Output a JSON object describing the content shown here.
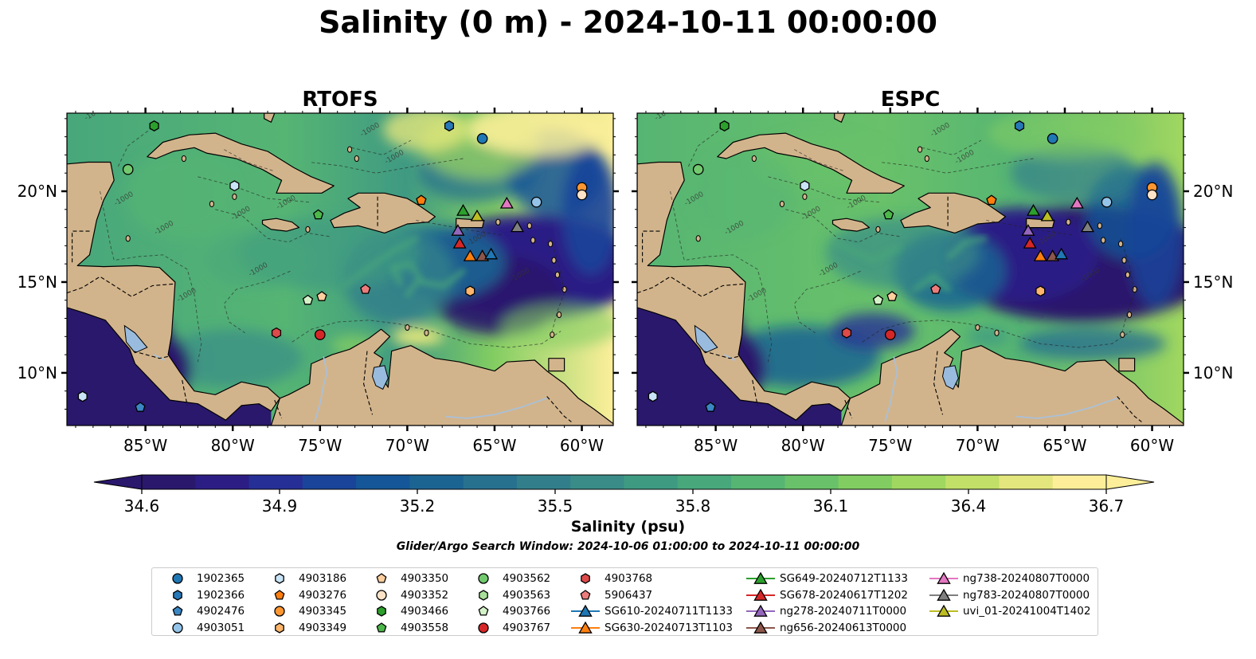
{
  "title": "Salinity (0 m) - 2024-10-11 00:00:00",
  "panels": [
    {
      "title": "RTOFS",
      "model": "rtofs"
    },
    {
      "title": "ESPC",
      "model": "espc"
    }
  ],
  "map_extent": {
    "lon_min": -89.5,
    "lon_max": -58.2,
    "lat_min": 7.1,
    "lat_max": 24.3
  },
  "lon_ticks": [
    {
      "value": -85,
      "label": "85°W"
    },
    {
      "value": -80,
      "label": "80°W"
    },
    {
      "value": -75,
      "label": "75°W"
    },
    {
      "value": -70,
      "label": "70°W"
    },
    {
      "value": -65,
      "label": "65°W"
    },
    {
      "value": -60,
      "label": "60°W"
    }
  ],
  "lat_ticks": [
    {
      "value": 10,
      "label": "10°N"
    },
    {
      "value": 15,
      "label": "15°N"
    },
    {
      "value": 20,
      "label": "20°N"
    }
  ],
  "colorbar": {
    "label": "Salinity (psu)",
    "min": 34.6,
    "max": 36.7,
    "ticks": [
      "34.6",
      "34.9",
      "35.2",
      "35.5",
      "35.8",
      "36.1",
      "36.4",
      "36.7"
    ],
    "extend": "both",
    "colormap": "haline",
    "colors": [
      "#2a186c",
      "#2c1d85",
      "#262f96",
      "#1a449a",
      "#145697",
      "#1b6492",
      "#27718f",
      "#327f8b",
      "#398c87",
      "#3f9a82",
      "#48a77b",
      "#56b573",
      "#69c16a",
      "#82cd62",
      "#a0d760",
      "#c2df68",
      "#e3e67c",
      "#fdef9a"
    ]
  },
  "contour_label": "-1000",
  "search_window": "Glider/Argo Search Window: 2024-10-06 01:00:00 to 2024-10-11 00:00:00",
  "colors": {
    "land": "#d2b48c",
    "lakes": "#99bbdd",
    "rivers": "#a7c1dd"
  },
  "legend": [
    {
      "label": "1902365",
      "marker": "circle",
      "color": "#1f77b4"
    },
    {
      "label": "1902366",
      "marker": "hexagon",
      "color": "#2678b8"
    },
    {
      "label": "4902476",
      "marker": "pentagon",
      "color": "#3a87c4"
    },
    {
      "label": "4903051",
      "marker": "circle",
      "color": "#94c4e9"
    },
    {
      "label": "4903186",
      "marker": "hexagon",
      "color": "#c8e4f6"
    },
    {
      "label": "4903276",
      "marker": "pentagon",
      "color": "#ff7f0e"
    },
    {
      "label": "4903345",
      "marker": "circle",
      "color": "#ff9632"
    },
    {
      "label": "4903349",
      "marker": "hexagon",
      "color": "#ffb56b"
    },
    {
      "label": "4903350",
      "marker": "pentagon",
      "color": "#ffcf9e"
    },
    {
      "label": "4903352",
      "marker": "circle",
      "color": "#ffe3c8"
    },
    {
      "label": "4903466",
      "marker": "hexagon",
      "color": "#2ca02c"
    },
    {
      "label": "4903558",
      "marker": "pentagon",
      "color": "#4cb84a"
    },
    {
      "label": "4903562",
      "marker": "circle",
      "color": "#72c96e"
    },
    {
      "label": "4903563",
      "marker": "hexagon",
      "color": "#a8e09a"
    },
    {
      "label": "4903766",
      "marker": "pentagon",
      "color": "#d4f2c8"
    },
    {
      "label": "4903767",
      "marker": "circle",
      "color": "#d62728"
    },
    {
      "label": "4903768",
      "marker": "hexagon",
      "color": "#de4a4a"
    },
    {
      "label": "5906437",
      "marker": "pentagon",
      "color": "#ec7c7c"
    },
    {
      "label": "SG610-20240711T1133",
      "marker": "triangle-line",
      "color": "#1f77b4"
    },
    {
      "label": "SG630-20240713T1103",
      "marker": "triangle-line",
      "color": "#ff7f0e"
    },
    {
      "label": "SG649-20240712T1133",
      "marker": "triangle-line",
      "color": "#2ca02c"
    },
    {
      "label": "SG678-20240617T1202",
      "marker": "triangle-line",
      "color": "#d62728"
    },
    {
      "label": "ng278-20240711T0000",
      "marker": "triangle-line",
      "color": "#9467bd"
    },
    {
      "label": "ng656-20240613T0000",
      "marker": "triangle-line",
      "color": "#8c564b"
    },
    {
      "label": "ng738-20240807T0000",
      "marker": "triangle-line",
      "color": "#e377c2"
    },
    {
      "label": "ng783-20240807T0000",
      "marker": "triangle-line",
      "color": "#7f7f7f"
    },
    {
      "label": "uvi_01-20241004T1402",
      "marker": "triangle-line",
      "color": "#bcbd22"
    }
  ],
  "observations": [
    {
      "id": "4903466",
      "lon": -84.5,
      "lat": 23.6
    },
    {
      "id": "1902366",
      "lon": -67.6,
      "lat": 23.6
    },
    {
      "id": "1902365",
      "lon": -65.7,
      "lat": 22.9
    },
    {
      "id": "4903562",
      "lon": -86.0,
      "lat": 21.2
    },
    {
      "id": "4903186",
      "lon": -79.9,
      "lat": 20.3
    },
    {
      "id": "4903345",
      "lon": -60.0,
      "lat": 20.2
    },
    {
      "id": "4903352",
      "lon": -60.0,
      "lat": 19.8
    },
    {
      "id": "4903276",
      "lon": -69.2,
      "lat": 19.5
    },
    {
      "id": "4903051",
      "lon": -62.6,
      "lat": 19.4
    },
    {
      "id": "4903558",
      "lon": -75.1,
      "lat": 18.7
    },
    {
      "id": "4903766",
      "lon": -75.7,
      "lat": 14.0
    },
    {
      "id": "4903350",
      "lon": -74.9,
      "lat": 14.2
    },
    {
      "id": "5906437",
      "lon": -72.4,
      "lat": 14.6
    },
    {
      "id": "4903349",
      "lon": -66.4,
      "lat": 14.5
    },
    {
      "id": "4903768",
      "lon": -77.5,
      "lat": 12.2
    },
    {
      "id": "4903767",
      "lon": -75.0,
      "lat": 12.1
    },
    {
      "id": "4903186",
      "lon": -88.6,
      "lat": 8.7
    },
    {
      "id": "4902476",
      "lon": -85.3,
      "lat": 8.1
    },
    {
      "id": "SG649-20240712T1133",
      "lon": -66.8,
      "lat": 18.9
    },
    {
      "id": "uvi_01-20241004T1402",
      "lon": -66.0,
      "lat": 18.6
    },
    {
      "id": "ng738-20240807T0000",
      "lon": -64.3,
      "lat": 19.3
    },
    {
      "id": "ng278-20240711T0000",
      "lon": -67.1,
      "lat": 17.8
    },
    {
      "id": "ng783-20240807T0000",
      "lon": -63.7,
      "lat": 18.0
    },
    {
      "id": "SG678-20240617T1202",
      "lon": -67.0,
      "lat": 17.1
    },
    {
      "id": "SG630-20240713T1103",
      "lon": -66.4,
      "lat": 16.4
    },
    {
      "id": "ng656-20240613T0000",
      "lon": -65.7,
      "lat": 16.4
    },
    {
      "id": "SG610-20240711T1133",
      "lon": -65.2,
      "lat": 16.5
    }
  ]
}
